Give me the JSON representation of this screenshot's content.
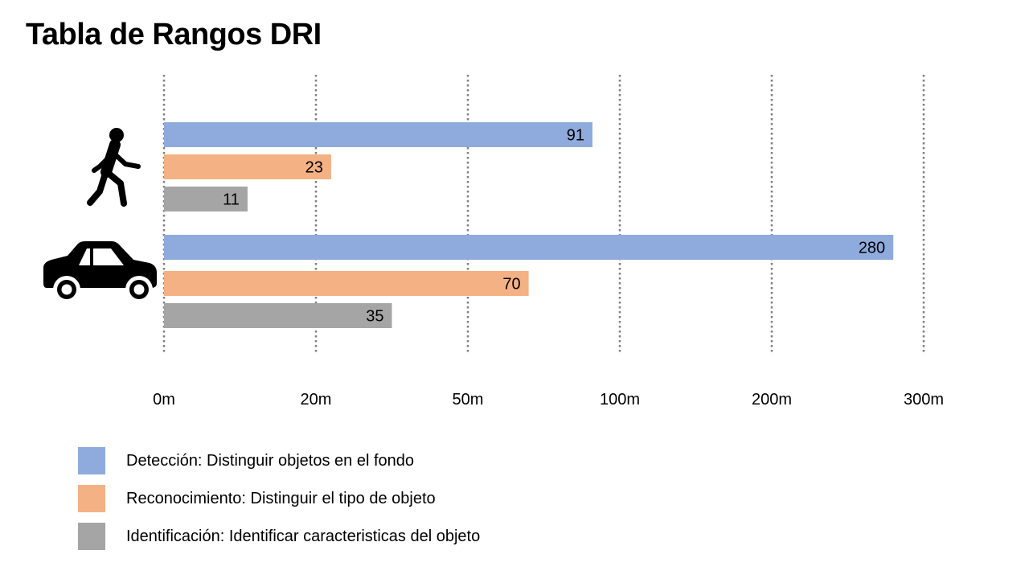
{
  "chart_data": {
    "type": "bar",
    "orientation": "horizontal",
    "title": "Tabla de Rangos DRI",
    "xlabel": "",
    "ylabel": "",
    "x_ticks": [
      "0m",
      "20m",
      "50m",
      "100m",
      "200m",
      "300m"
    ],
    "x_tick_values": [
      0,
      20,
      50,
      100,
      200,
      300
    ],
    "grid": "vertical dotted",
    "legend_position": "bottom-left",
    "categories": [
      {
        "name": "pedestrian",
        "icon": "person-walking-icon"
      },
      {
        "name": "car",
        "icon": "car-icon"
      }
    ],
    "series": [
      {
        "name": "Detección: Distinguir objetos en el fondo",
        "color": "#8faadc",
        "values": [
          91,
          280
        ],
        "labels": [
          "91",
          "280"
        ]
      },
      {
        "name": "Reconocimiento: Distinguir el tipo de objeto",
        "color": "#f4b183",
        "values": [
          23,
          70
        ],
        "labels": [
          "23",
          "70"
        ]
      },
      {
        "name": "Identificación: Identificar caracteristicas del objeto",
        "color": "#a5a5a5",
        "values": [
          11,
          35
        ],
        "labels": [
          "11",
          "35"
        ]
      }
    ]
  }
}
